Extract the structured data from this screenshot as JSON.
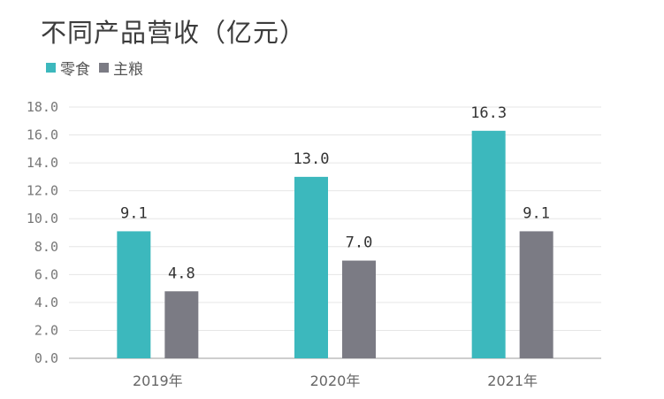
{
  "chart_data": {
    "type": "bar",
    "title": "不同产品营收（亿元）",
    "categories": [
      "2019年",
      "2020年",
      "2021年"
    ],
    "series": [
      {
        "name": "零食",
        "color": "#3cb8bd",
        "values": [
          9.1,
          13.0,
          16.3
        ],
        "labels": [
          "9.1",
          "13.0",
          "16.3"
        ]
      },
      {
        "name": "主粮",
        "color": "#7b7b84",
        "values": [
          4.8,
          7.0,
          9.1
        ],
        "labels": [
          "4.8",
          "7.0",
          "9.1"
        ]
      }
    ],
    "yticks": [
      "0.0",
      "2.0",
      "4.0",
      "6.0",
      "8.0",
      "10.0",
      "12.0",
      "14.0",
      "16.0",
      "18.0"
    ],
    "ylim": [
      0,
      18
    ],
    "xlabel": "",
    "ylabel": "",
    "grid": true,
    "legend": "top-left"
  }
}
